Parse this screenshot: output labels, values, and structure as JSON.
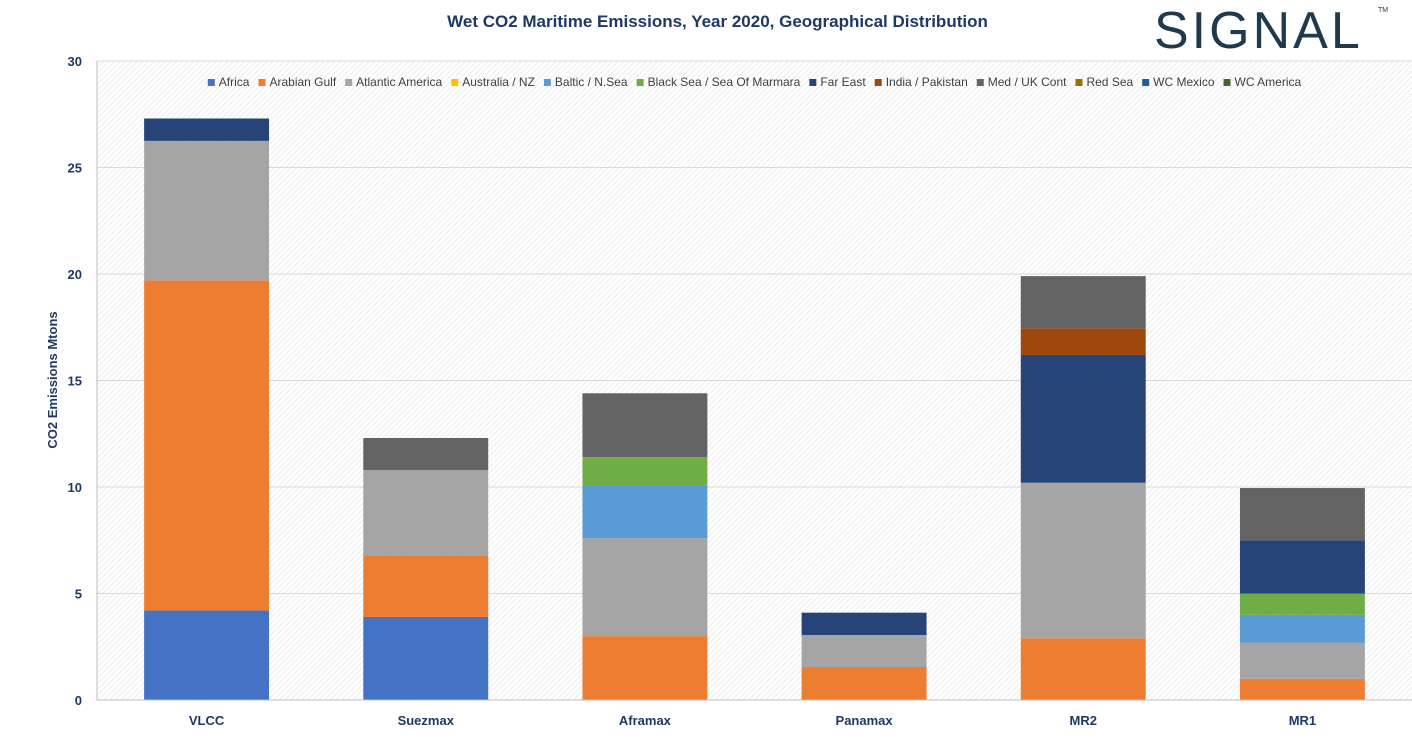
{
  "brand": {
    "logo_text": "SIGNAL",
    "trademark": "TM",
    "color": "#1f3a4d"
  },
  "chart_data": {
    "type": "bar",
    "stacked": true,
    "title": "Wet CO2 Maritime Emissions,  Year 2020, Geographical Distribution",
    "xlabel": "",
    "ylabel": "CO2 Emissions Mtons",
    "ylim": [
      0,
      30
    ],
    "yticks": [
      0,
      5,
      10,
      15,
      20,
      25,
      30
    ],
    "grid": true,
    "legend_position": "top",
    "categories": [
      "VLCC",
      "Suezmax",
      "Aframax",
      "Panamax",
      "MR2",
      "MR1"
    ],
    "series": [
      {
        "name": "Africa",
        "color": "#4472c4",
        "values": [
          4.2,
          3.9,
          0,
          0,
          0,
          0
        ]
      },
      {
        "name": "Arabian Gulf",
        "color": "#ed7d31",
        "values": [
          15.5,
          2.9,
          3.0,
          1.55,
          2.9,
          1.0
        ]
      },
      {
        "name": "Atlantic America",
        "color": "#a5a5a5",
        "values": [
          6.55,
          4.0,
          4.6,
          1.5,
          7.3,
          1.7
        ]
      },
      {
        "name": "Australia / NZ",
        "color": "#ffc000",
        "values": [
          0,
          0,
          0,
          0,
          0,
          0
        ]
      },
      {
        "name": "Baltic / N.Sea",
        "color": "#5b9bd5",
        "values": [
          0,
          0,
          2.45,
          0,
          0,
          1.3
        ]
      },
      {
        "name": "Black Sea / Sea Of Marmara",
        "color": "#70ad47",
        "values": [
          0,
          0,
          1.35,
          0,
          0,
          1.0
        ]
      },
      {
        "name": "Far East",
        "color": "#264478",
        "values": [
          1.05,
          0,
          0,
          1.05,
          6.0,
          2.5
        ]
      },
      {
        "name": "India / Pakistan",
        "color": "#9e480e",
        "values": [
          0,
          0,
          0,
          0,
          1.25,
          0
        ]
      },
      {
        "name": "Med / UK Cont",
        "color": "#636363",
        "values": [
          0,
          1.5,
          3.0,
          0,
          2.45,
          2.45
        ]
      },
      {
        "name": "Red Sea",
        "color": "#997300",
        "values": [
          0,
          0,
          0,
          0,
          0,
          0
        ]
      },
      {
        "name": "WC Mexico",
        "color": "#255e91",
        "values": [
          0,
          0,
          0,
          0,
          0,
          0
        ]
      },
      {
        "name": "WC America",
        "color": "#43682b",
        "values": [
          0,
          0,
          0,
          0,
          0,
          0
        ]
      }
    ]
  }
}
